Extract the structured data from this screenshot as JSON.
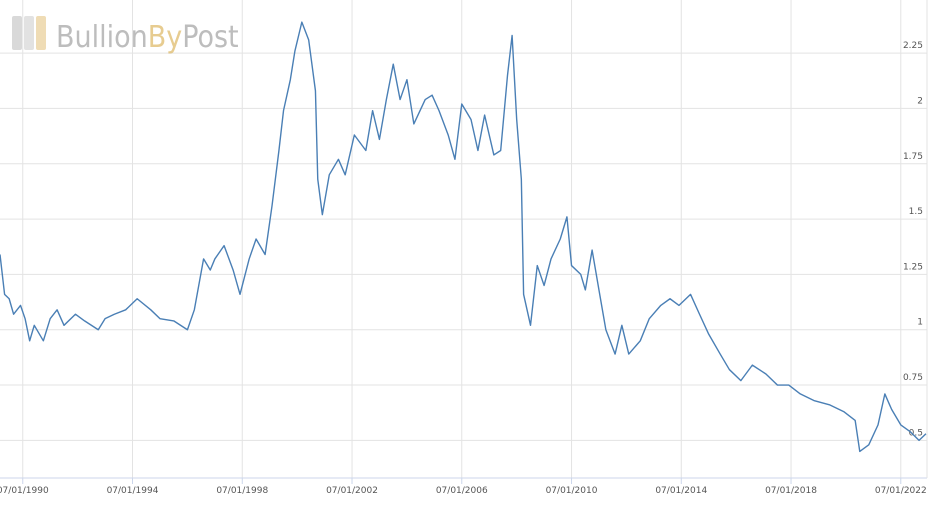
{
  "watermark": [
    "Bullion",
    "By",
    "Post"
  ],
  "chart_data": {
    "type": "line",
    "x": [
      "1989-09-01",
      "1989-11-01",
      "1990-01-01",
      "1990-03-01",
      "1990-06-01",
      "1990-08-01",
      "1990-10-01",
      "1990-12-01",
      "1991-04-01",
      "1991-07-01",
      "1991-10-01",
      "1992-01-01",
      "1992-06-01",
      "1992-10-01",
      "1993-04-01",
      "1993-07-01",
      "1993-11-01",
      "1994-04-01",
      "1994-09-01",
      "1995-03-01",
      "1995-07-01",
      "1996-01-01",
      "1996-07-01",
      "1996-10-01",
      "1997-02-01",
      "1997-05-01",
      "1997-07-01",
      "1997-11-01",
      "1998-03-01",
      "1998-06-01",
      "1998-10-01",
      "1999-01-01",
      "1999-05-01",
      "1999-08-01",
      "1999-11-01",
      "2000-01-01",
      "2000-04-01",
      "2000-06-01",
      "2000-09-01",
      "2000-12-01",
      "2001-03-01",
      "2001-04-01",
      "2001-06-01",
      "2001-09-01",
      "2002-01-01",
      "2002-04-01",
      "2002-08-01",
      "2003-01-01",
      "2003-04-01",
      "2003-07-01",
      "2003-10-01",
      "2004-01-01",
      "2004-04-01",
      "2004-07-01",
      "2004-10-01",
      "2005-03-01",
      "2005-06-01",
      "2005-09-01",
      "2006-01-01",
      "2006-04-01",
      "2006-07-01",
      "2006-11-01",
      "2007-02-01",
      "2007-05-01",
      "2007-09-01",
      "2007-12-01",
      "2008-03-01",
      "2008-05-01",
      "2008-07-01",
      "2008-09-01",
      "2008-10-01",
      "2009-01-01",
      "2009-04-01",
      "2009-07-01",
      "2009-10-01",
      "2010-02-01",
      "2010-05-01",
      "2010-07-01",
      "2010-11-01",
      "2011-01-01",
      "2011-04-01",
      "2011-07-01",
      "2011-10-01",
      "2012-02-01",
      "2012-05-01",
      "2012-08-01",
      "2013-01-01",
      "2013-05-01",
      "2013-10-01",
      "2014-02-01",
      "2014-06-01",
      "2014-11-01",
      "2015-03-01",
      "2015-07-01",
      "2015-12-01",
      "2016-04-01",
      "2016-09-01",
      "2017-02-01",
      "2017-08-01",
      "2018-01-01",
      "2018-06-01",
      "2018-11-01",
      "2019-05-01",
      "2019-12-01",
      "2020-06-01",
      "2020-11-01",
      "2021-01-01",
      "2021-05-01",
      "2021-09-01",
      "2021-12-01",
      "2022-03-01",
      "2022-07-01",
      "2022-11-01",
      "2023-03-01",
      "2023-06-01"
    ],
    "values": [
      1.34,
      1.16,
      1.14,
      1.07,
      1.11,
      1.05,
      0.95,
      1.02,
      0.95,
      1.05,
      1.09,
      1.02,
      1.07,
      1.04,
      1.0,
      1.05,
      1.07,
      1.09,
      1.14,
      1.09,
      1.05,
      1.04,
      1.0,
      1.09,
      1.32,
      1.27,
      1.32,
      1.38,
      1.27,
      1.16,
      1.32,
      1.41,
      1.34,
      1.56,
      1.81,
      1.99,
      2.13,
      2.26,
      2.39,
      2.31,
      2.08,
      1.68,
      1.52,
      1.7,
      1.77,
      1.7,
      1.88,
      1.81,
      1.99,
      1.86,
      2.04,
      2.2,
      2.04,
      2.13,
      1.93,
      2.04,
      2.06,
      1.99,
      1.88,
      1.77,
      2.02,
      1.95,
      1.81,
      1.97,
      1.79,
      1.81,
      2.15,
      2.33,
      1.95,
      1.68,
      1.16,
      1.02,
      1.29,
      1.2,
      1.32,
      1.41,
      1.51,
      1.29,
      1.25,
      1.18,
      1.36,
      1.18,
      1.0,
      0.89,
      1.02,
      0.89,
      0.95,
      1.05,
      1.11,
      1.14,
      1.11,
      1.16,
      1.07,
      0.98,
      0.89,
      0.82,
      0.77,
      0.84,
      0.8,
      0.75,
      0.75,
      0.71,
      0.68,
      0.66,
      0.63,
      0.59,
      0.45,
      0.48,
      0.57,
      0.71,
      0.64,
      0.57,
      0.54,
      0.5,
      0.53
    ],
    "color": "#4a7fb5",
    "xlim": [
      "1989-09-01",
      "2023-06-15"
    ],
    "xticks": [
      {
        "value": "1990-07-01",
        "label": "07/01/1990"
      },
      {
        "value": "1994-07-01",
        "label": "07/01/1994"
      },
      {
        "value": "1998-07-01",
        "label": "07/01/1998"
      },
      {
        "value": "2002-07-01",
        "label": "07/01/2002"
      },
      {
        "value": "2006-07-01",
        "label": "07/01/2006"
      },
      {
        "value": "2010-07-01",
        "label": "07/01/2010"
      },
      {
        "value": "2014-07-01",
        "label": "07/01/2014"
      },
      {
        "value": "2018-07-01",
        "label": "07/01/2018"
      },
      {
        "value": "2022-07-01",
        "label": "07/01/2022"
      }
    ],
    "ylim": [
      0.33,
      2.49
    ],
    "yticks": [
      0.5,
      0.75,
      1,
      1.25,
      1.5,
      1.75,
      2,
      2.25
    ],
    "grid": true
  }
}
